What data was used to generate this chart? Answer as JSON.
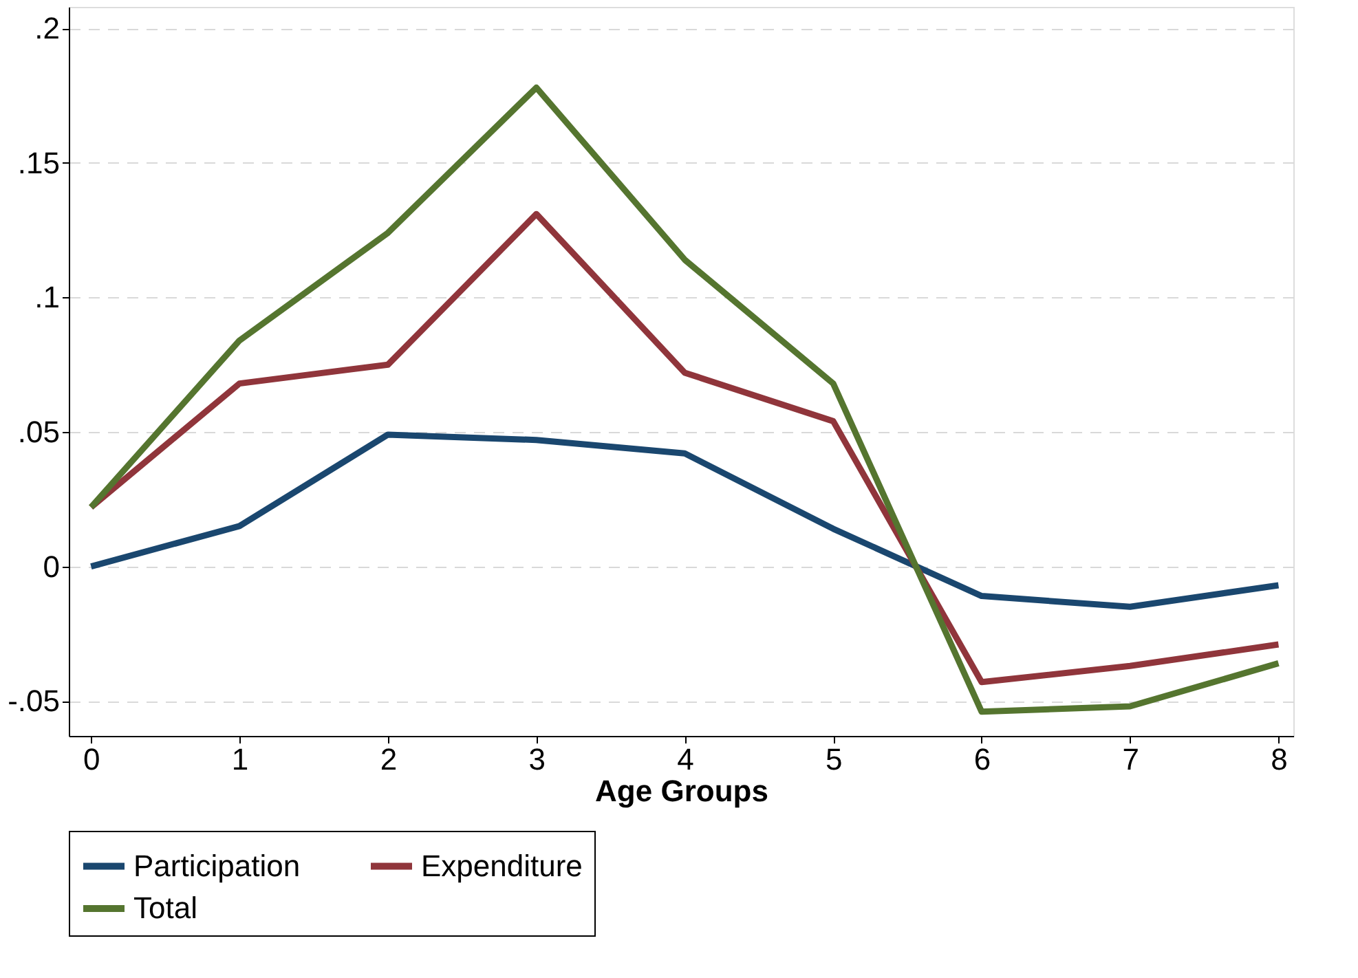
{
  "chart_data": {
    "type": "line",
    "xlabel": "Age Groups",
    "x": [
      0,
      1,
      2,
      3,
      4,
      5,
      6,
      7,
      8
    ],
    "series": [
      {
        "name": "Participation",
        "color": "#1a476f",
        "values": [
          0.0,
          0.015,
          0.049,
          0.047,
          0.042,
          0.014,
          -0.011,
          -0.015,
          -0.007
        ]
      },
      {
        "name": "Expenditure",
        "color": "#90353b",
        "values": [
          0.022,
          0.068,
          0.075,
          0.131,
          0.072,
          0.054,
          -0.043,
          -0.037,
          -0.029
        ]
      },
      {
        "name": "Total",
        "color": "#55752f",
        "values": [
          0.022,
          0.084,
          0.124,
          0.178,
          0.114,
          0.068,
          -0.054,
          -0.052,
          -0.036
        ]
      }
    ],
    "xlim": [
      -0.15,
      8.1
    ],
    "xticks": [
      0,
      1,
      2,
      3,
      4,
      5,
      6,
      7,
      8
    ],
    "ylim": [
      -0.063,
      0.208
    ],
    "yticks": [
      {
        "value": -0.05,
        "label": "-.05"
      },
      {
        "value": 0,
        "label": "0"
      },
      {
        "value": 0.05,
        "label": ".05"
      },
      {
        "value": 0.1,
        "label": ".1"
      },
      {
        "value": 0.15,
        "label": ".15"
      },
      {
        "value": 0.2,
        "label": ".2"
      }
    ],
    "grid": "y",
    "legend": "bottom",
    "marker": "none",
    "line_style": "solid"
  }
}
